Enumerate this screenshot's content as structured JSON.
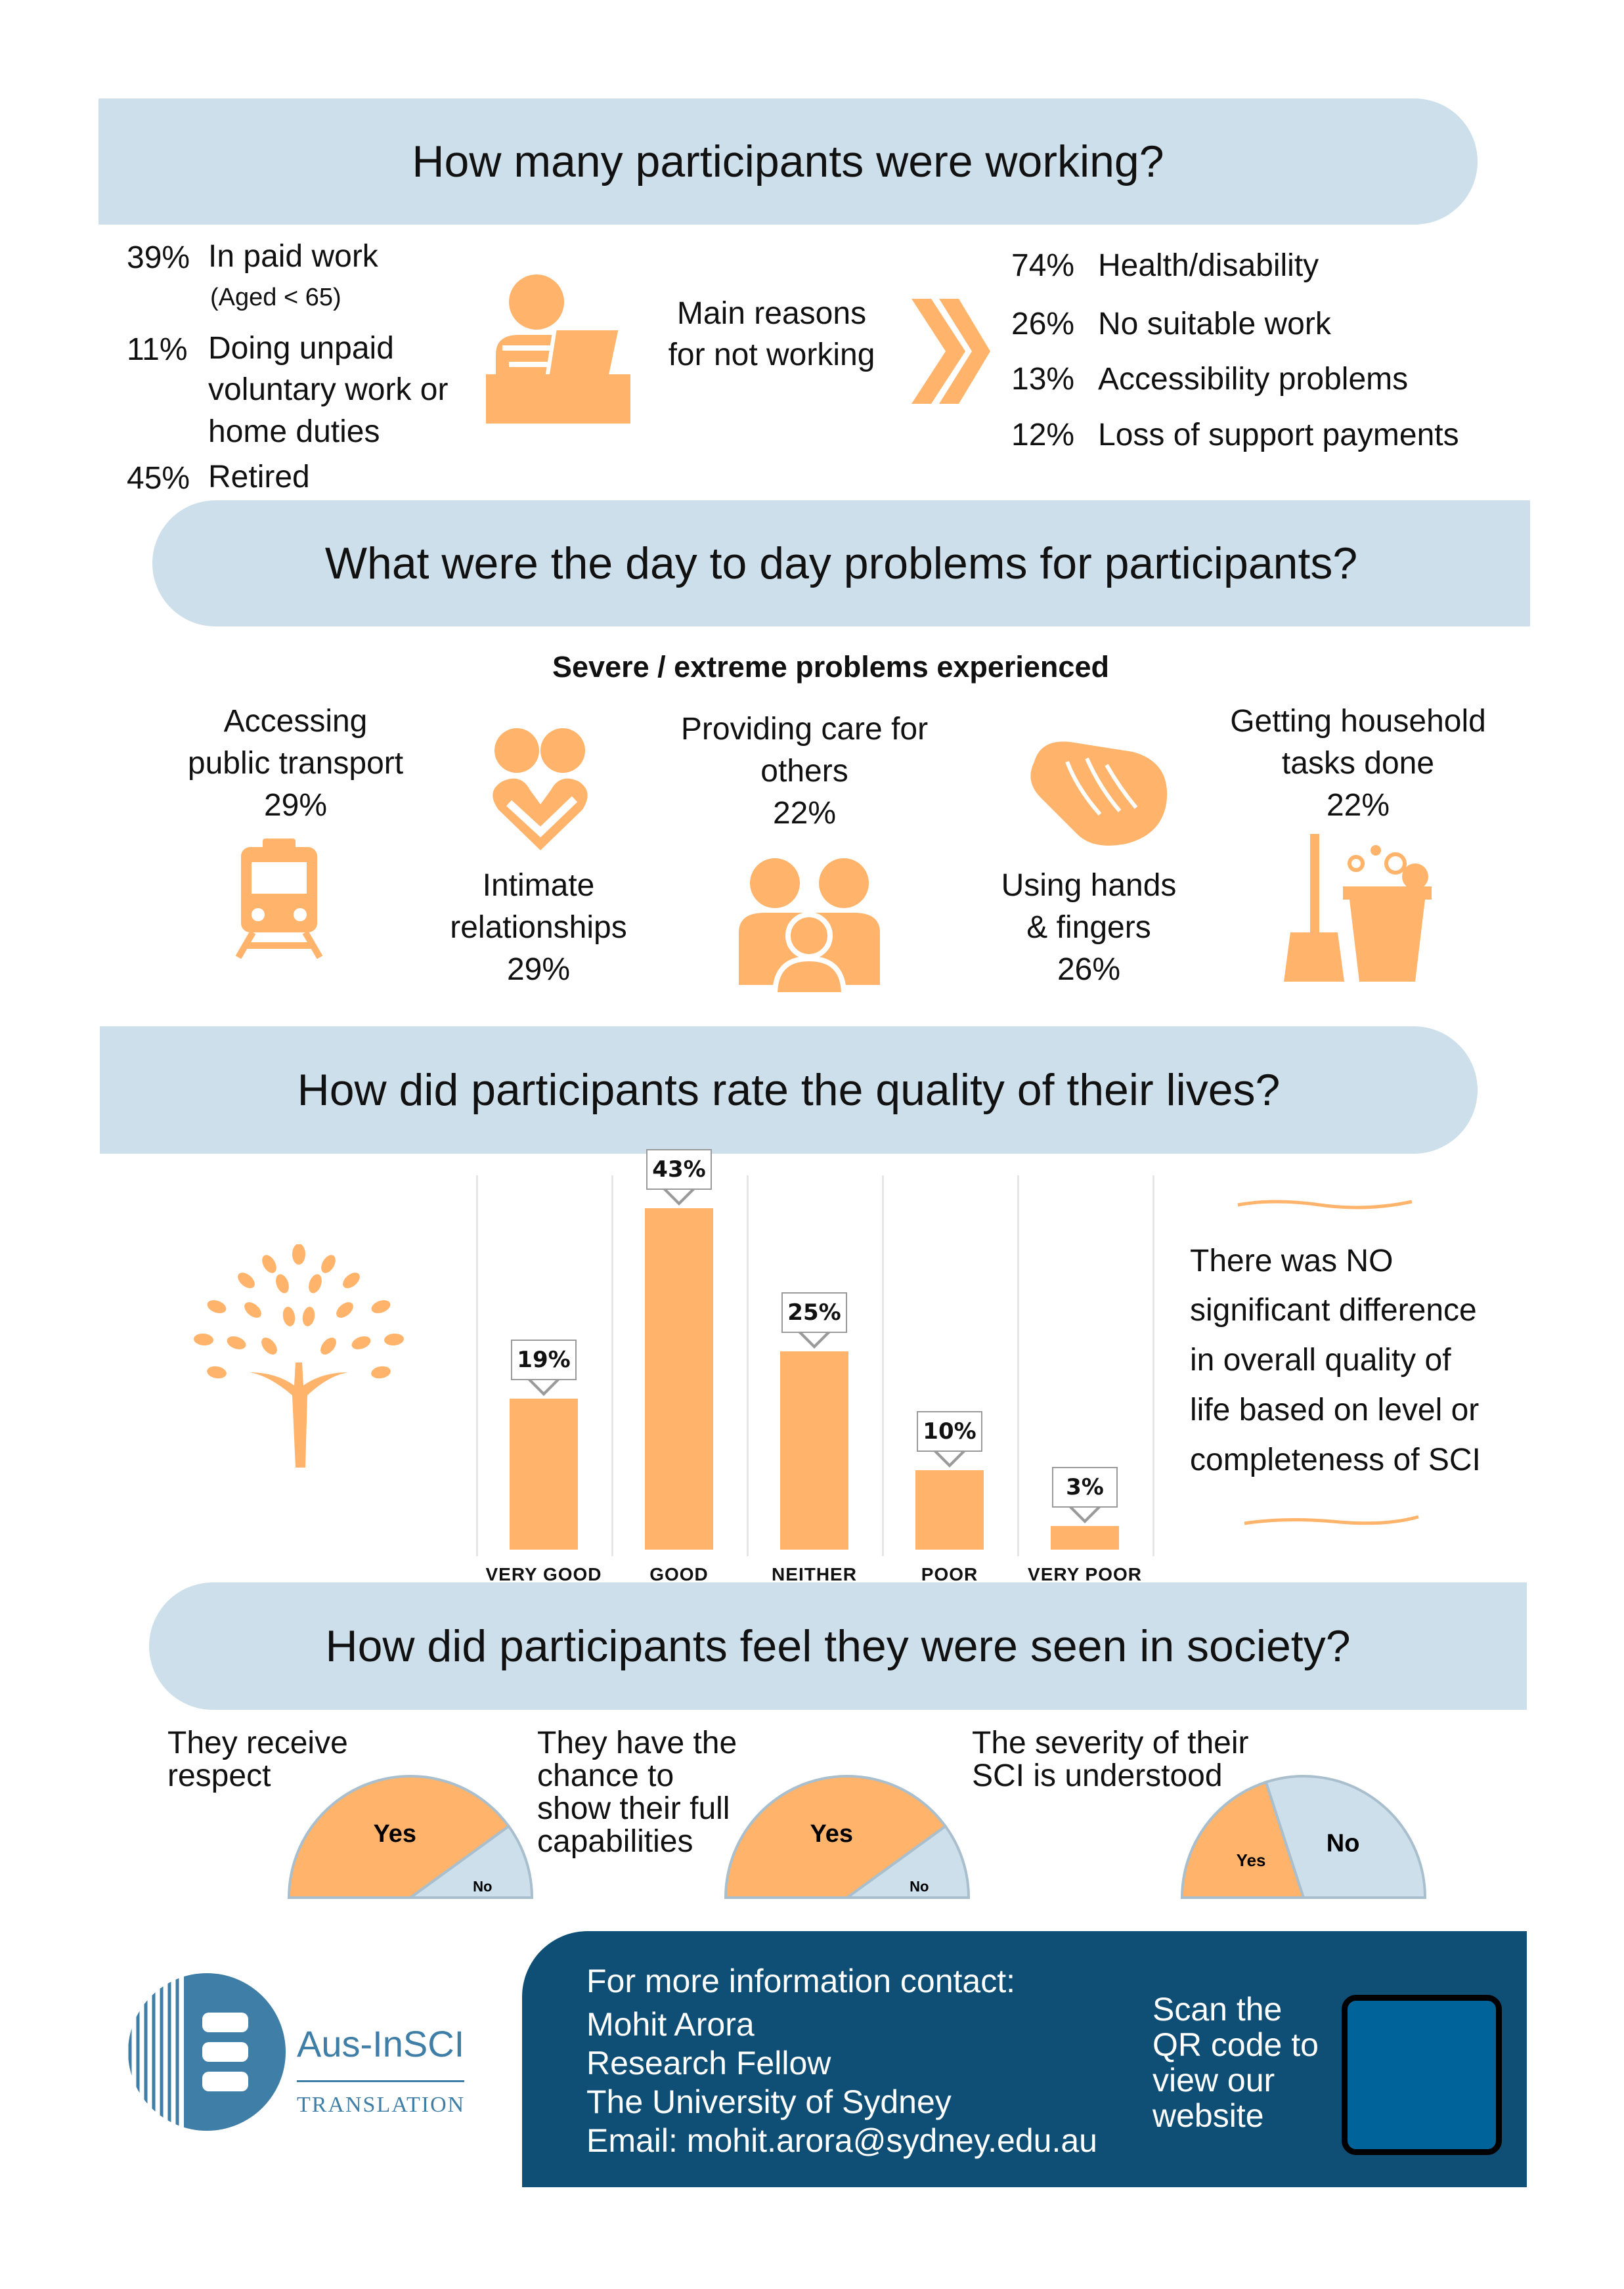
{
  "working": {
    "title": "How many participants were working?",
    "stats": [
      {
        "pct": "39%",
        "label": "In paid work",
        "note": "(Aged < 65)"
      },
      {
        "pct": "11%",
        "label_lines": [
          "Doing unpaid",
          "voluntary work or",
          "home duties"
        ]
      },
      {
        "pct": "45%",
        "label": "Retired"
      }
    ],
    "icon": "person-at-laptop-icon",
    "reasons_label_lines": [
      "Main reasons",
      "for not working"
    ],
    "reasons": [
      {
        "pct": "74%",
        "label": "Health/disability"
      },
      {
        "pct": "26%",
        "label": "No suitable work"
      },
      {
        "pct": "13%",
        "label": "Accessibility problems"
      },
      {
        "pct": "12%",
        "label": "Loss of support payments"
      }
    ]
  },
  "problems": {
    "title": "What were the day to day problems for participants?",
    "subtitle": "Severe / extreme problems experienced",
    "items": [
      {
        "lines": [
          "Accessing",
          "public transport"
        ],
        "pct": "29%",
        "icon": "train-icon"
      },
      {
        "lines": [
          "Intimate",
          "relationships"
        ],
        "pct": "29%",
        "icon": "hearts-icon"
      },
      {
        "lines": [
          "Providing care for",
          "others"
        ],
        "pct": "22%",
        "icon": "family-icon"
      },
      {
        "lines": [
          "Using hands",
          "& fingers"
        ],
        "pct": "26%",
        "icon": "hand-icon"
      },
      {
        "lines": [
          "Getting household",
          "tasks done"
        ],
        "pct": "22%",
        "icon": "bucket-broom-icon"
      }
    ]
  },
  "quality": {
    "title": "How did participants rate the quality of their lives?",
    "note_lines": [
      "There was NO",
      "significant difference",
      "in overall quality of",
      "life based on level or",
      "completeness of SCI"
    ],
    "icon": "tree-icon"
  },
  "chart_data": {
    "type": "bar",
    "categories": [
      "VERY GOOD",
      "GOOD",
      "NEITHER",
      "POOR",
      "VERY POOR"
    ],
    "values": [
      19,
      43,
      25,
      10,
      3
    ],
    "value_labels": [
      "19%",
      "43%",
      "25%",
      "10%",
      "3%"
    ],
    "ylim": [
      0,
      43
    ],
    "grid": false,
    "color": "#ffb36b"
  },
  "society": {
    "title": "How did participants feel they were seen in society?",
    "items": [
      {
        "lines": [
          "They receive",
          "respect"
        ],
        "yes": "Yes",
        "no": "No",
        "yes_share": 0.8
      },
      {
        "lines": [
          "They have the",
          "chance to",
          "show their full",
          "capabilities"
        ],
        "yes": "Yes",
        "no": "No",
        "yes_share": 0.8
      },
      {
        "lines": [
          "The severity of their",
          "SCI is understood"
        ],
        "yes": "Yes",
        "no": "No",
        "yes_share": 0.4
      }
    ],
    "yes_color": "#ffb36b",
    "no_color": "#cddfea"
  },
  "footer": {
    "logo_name": "Aus-InSCI",
    "logo_sub": "TRANSLATION",
    "contact_lines": [
      "For more information contact:",
      "Mohit Arora",
      "Research Fellow",
      "The University of Sydney",
      "Email: mohit.arora@sydney.edu.au"
    ],
    "qr_lines": [
      "Scan the",
      "QR code to",
      "view our",
      "website"
    ],
    "bg_color": "#0f4f75",
    "qr_color": "#00639a"
  },
  "accent_color": "#ffb36b",
  "banner_color": "#cddfea"
}
